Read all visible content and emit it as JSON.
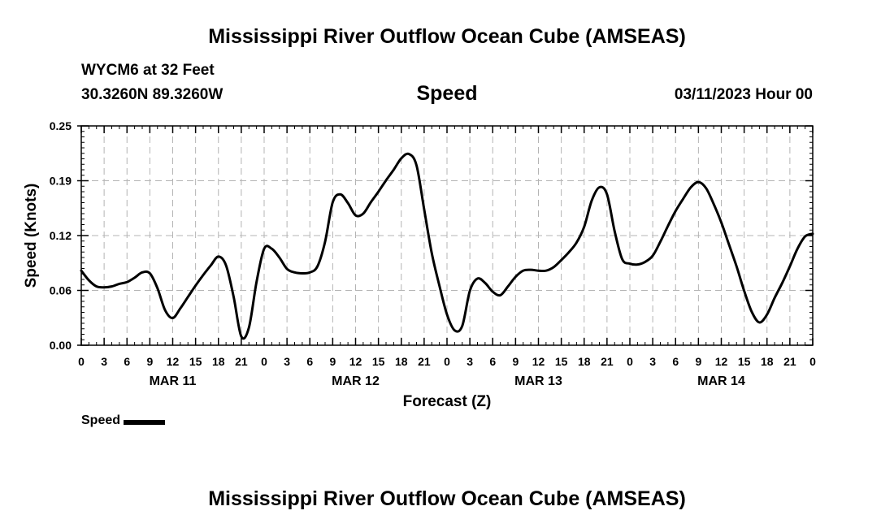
{
  "header": {
    "title": "Mississippi River Outflow Ocean Cube (AMSEAS)",
    "station": "WYCM6 at 32 Feet",
    "coords": "30.3260N  89.3260W",
    "variable": "Speed",
    "datetime": "03/11/2023 Hour 00"
  },
  "legend": {
    "label": "Speed"
  },
  "footer": {
    "title": "Mississippi River Outflow Ocean Cube (AMSEAS)"
  },
  "chart_data": {
    "type": "line",
    "title": "Speed",
    "xlabel": "Forecast (Z)",
    "ylabel": "Speed (Knots)",
    "xlim": [
      0,
      96
    ],
    "ylim": [
      0.0,
      0.25
    ],
    "grid": true,
    "yticks": [
      "0.00",
      "0.06",
      "0.12",
      "0.19",
      "0.25"
    ],
    "ytick_values": [
      0.0,
      0.0625,
      0.125,
      0.1875,
      0.25
    ],
    "xticks": {
      "hours": [
        0,
        3,
        6,
        9,
        12,
        15,
        18,
        21,
        24,
        27,
        30,
        33,
        36,
        39,
        42,
        45,
        48,
        51,
        54,
        57,
        60,
        63,
        66,
        69,
        72,
        75,
        78,
        81,
        84,
        87,
        90,
        93,
        96
      ],
      "labels": [
        "0",
        "3",
        "6",
        "9",
        "12",
        "15",
        "18",
        "21",
        "0",
        "3",
        "6",
        "9",
        "12",
        "15",
        "18",
        "21",
        "0",
        "3",
        "6",
        "9",
        "12",
        "15",
        "18",
        "21",
        "0",
        "3",
        "6",
        "9",
        "12",
        "15",
        "18",
        "21",
        "0"
      ]
    },
    "day_labels": [
      {
        "label": "MAR 11",
        "hour": 12
      },
      {
        "label": "MAR 12",
        "hour": 36
      },
      {
        "label": "MAR 13",
        "hour": 60
      },
      {
        "label": "MAR 14",
        "hour": 84
      }
    ],
    "legend_position": "bottom-left",
    "series": [
      {
        "name": "Speed",
        "color": "#000000",
        "x": [
          0,
          1,
          2,
          3,
          4,
          5,
          6,
          7,
          8,
          9,
          10,
          11,
          12,
          13,
          14,
          15,
          16,
          17,
          18,
          19,
          20,
          21,
          22,
          23,
          24,
          25,
          26,
          27,
          28,
          29,
          30,
          31,
          32,
          33,
          34,
          35,
          36,
          37,
          38,
          39,
          40,
          41,
          42,
          43,
          44,
          45,
          46,
          47,
          48,
          49,
          50,
          51,
          52,
          53,
          54,
          55,
          56,
          57,
          58,
          59,
          60,
          61,
          62,
          63,
          64,
          65,
          66,
          67,
          68,
          69,
          70,
          71,
          72,
          73,
          74,
          75,
          76,
          77,
          78,
          79,
          80,
          81,
          82,
          83,
          84,
          85,
          86,
          87,
          88,
          89,
          90,
          91,
          92,
          93,
          94,
          95,
          96
        ],
        "values": [
          0.085,
          0.074,
          0.067,
          0.066,
          0.067,
          0.07,
          0.072,
          0.077,
          0.083,
          0.082,
          0.065,
          0.04,
          0.031,
          0.042,
          0.055,
          0.068,
          0.08,
          0.091,
          0.101,
          0.091,
          0.055,
          0.01,
          0.02,
          0.072,
          0.11,
          0.11,
          0.1,
          0.087,
          0.083,
          0.082,
          0.083,
          0.09,
          0.118,
          0.163,
          0.172,
          0.162,
          0.148,
          0.15,
          0.163,
          0.175,
          0.188,
          0.2,
          0.213,
          0.218,
          0.205,
          0.155,
          0.105,
          0.068,
          0.035,
          0.017,
          0.022,
          0.062,
          0.076,
          0.071,
          0.061,
          0.057,
          0.067,
          0.078,
          0.085,
          0.086,
          0.085,
          0.085,
          0.089,
          0.097,
          0.106,
          0.117,
          0.135,
          0.165,
          0.18,
          0.172,
          0.13,
          0.098,
          0.093,
          0.092,
          0.095,
          0.102,
          0.118,
          0.136,
          0.153,
          0.167,
          0.18,
          0.186,
          0.179,
          0.161,
          0.14,
          0.115,
          0.09,
          0.062,
          0.038,
          0.026,
          0.035,
          0.054,
          0.071,
          0.09,
          0.11,
          0.124,
          0.127
        ]
      }
    ]
  }
}
